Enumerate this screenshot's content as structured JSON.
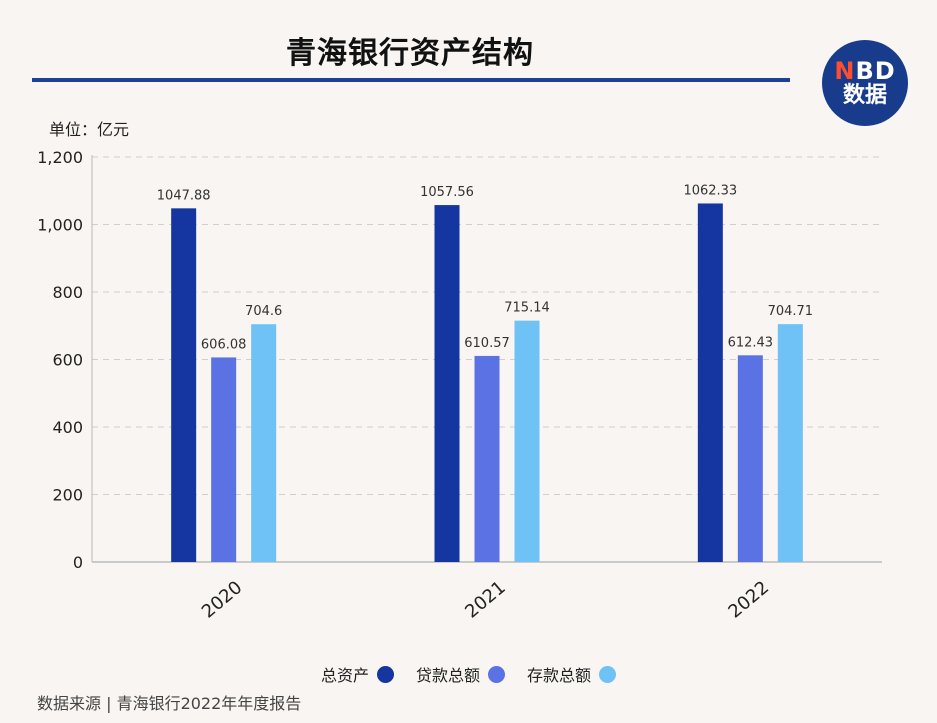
{
  "title": "青海银行资产结构",
  "logo": {
    "top_n": "N",
    "top_rest": "BD",
    "bottom": "数据"
  },
  "unit_label": "单位：亿元",
  "source": "数据来源 | 青海银行2022年年度报告",
  "colors": {
    "title_rule": "#1f3f95",
    "logo_bg": "#183b8c"
  },
  "chart_data": {
    "type": "bar",
    "categories": [
      "2020",
      "2021",
      "2022"
    ],
    "series": [
      {
        "name": "总资产",
        "color": "#1536a0",
        "values": [
          1047.88,
          1057.56,
          1062.33
        ],
        "labels": [
          "1047.88",
          "1057.56",
          "1062.33"
        ]
      },
      {
        "name": "贷款总额",
        "color": "#5a72e3",
        "values": [
          606.08,
          610.57,
          612.43
        ],
        "labels": [
          "606.08",
          "610.57",
          "612.43"
        ]
      },
      {
        "name": "存款总额",
        "color": "#6ec2f6",
        "values": [
          704.6,
          715.14,
          704.71
        ],
        "labels": [
          "704.6",
          "715.14",
          "704.71"
        ]
      }
    ],
    "ylim": [
      0,
      1200
    ],
    "yticks": [
      0,
      200,
      400,
      600,
      800,
      1000,
      1200
    ],
    "ytick_labels": [
      "0",
      "200",
      "400",
      "600",
      "800",
      "1,000",
      "1,200"
    ],
    "grid": true,
    "legend_position": "bottom-center"
  }
}
